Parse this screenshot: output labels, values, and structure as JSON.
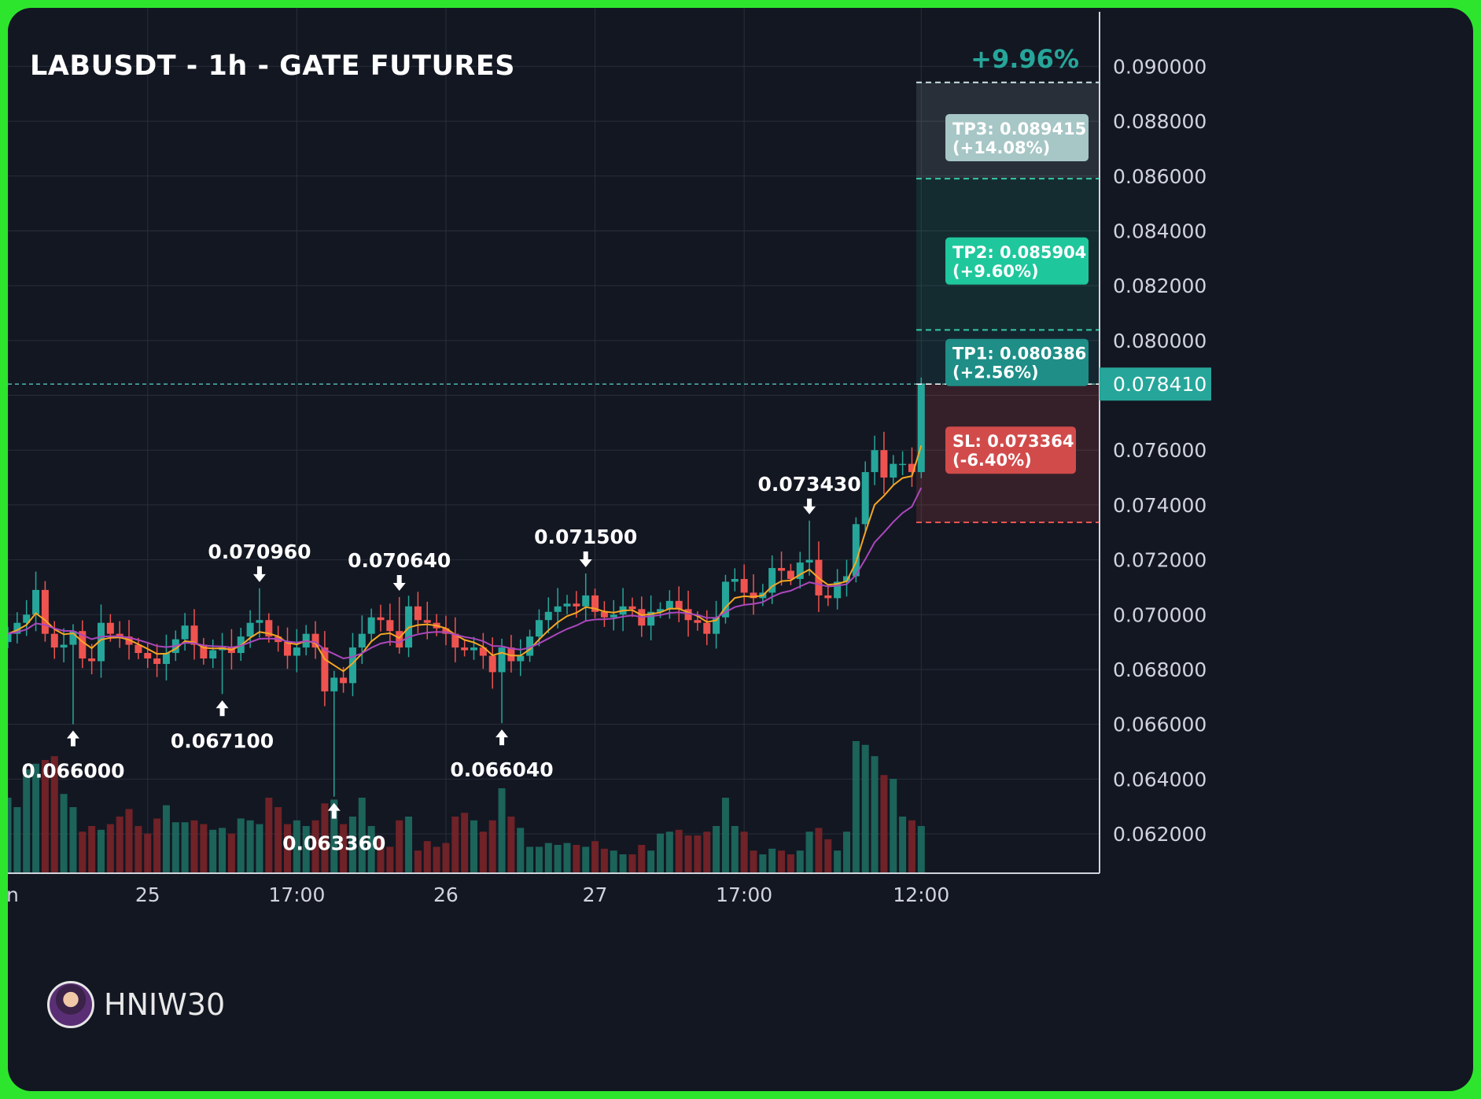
{
  "title": "LABUSDT - 1h - GATE FUTURES",
  "watermark": {
    "name": "HNIW30",
    "icon": "avatar-icon"
  },
  "colors": {
    "bull": "#26a69a",
    "bear": "#ef5350",
    "ema_fast": "#f5a623",
    "ema_slow": "#ab47bc",
    "grid": "#2a2e39",
    "axis_text": "#d1d4dc",
    "tp3": "#a7c6c6",
    "tp2": "#1fc79c",
    "tp1": "#1e8e87",
    "sl": "#d24b4b"
  },
  "chart_data": {
    "type": "candlestick",
    "symbol": "LABUSDT",
    "interval": "1h",
    "exchange": "GATE FUTURES",
    "y_ticks": [
      "0.090000",
      "0.088000",
      "0.086000",
      "0.084000",
      "0.082000",
      "0.080000",
      "0.076000",
      "0.074000",
      "0.072000",
      "0.070000",
      "0.068000",
      "0.066000",
      "0.064000",
      "0.062000"
    ],
    "ylim": [
      0.061,
      0.0915
    ],
    "x_ticks": [
      {
        "label": "n",
        "index": 0
      },
      {
        "label": "25",
        "index": 15
      },
      {
        "label": "17:00",
        "index": 31
      },
      {
        "label": "26",
        "index": 47
      },
      {
        "label": "27",
        "index": 63
      },
      {
        "label": "17:00",
        "index": 79
      },
      {
        "label": "12:00",
        "index": 98
      }
    ],
    "last_price": "0.078410",
    "last_price_value": 0.07841,
    "change_pct": "+9.96%",
    "targets": [
      {
        "name": "TP3",
        "label": "TP3: 0.089415",
        "pct": "(+14.08%)",
        "price": 0.089415
      },
      {
        "name": "TP2",
        "label": "TP2: 0.085904",
        "pct": "(+9.60%)",
        "price": 0.085904
      },
      {
        "name": "TP1",
        "label": "TP1: 0.080386",
        "pct": "(+2.56%)",
        "price": 0.080386
      }
    ],
    "stop_loss": {
      "label": "SL: 0.073364",
      "pct": "(-6.40%)",
      "price": 0.073364
    },
    "annotations": [
      {
        "text": "0.066000",
        "index": 7,
        "price": 0.066,
        "dir": "low"
      },
      {
        "text": "0.067100",
        "index": 23,
        "price": 0.0671,
        "dir": "low"
      },
      {
        "text": "0.070960",
        "index": 27,
        "price": 0.07096,
        "dir": "high"
      },
      {
        "text": "0.063360",
        "index": 35,
        "price": 0.06336,
        "dir": "low"
      },
      {
        "text": "0.070640",
        "index": 42,
        "price": 0.07064,
        "dir": "high"
      },
      {
        "text": "0.066040",
        "index": 53,
        "price": 0.06604,
        "dir": "low"
      },
      {
        "text": "0.071500",
        "index": 62,
        "price": 0.0715,
        "dir": "high"
      },
      {
        "text": "0.073430",
        "index": 86,
        "price": 0.07343,
        "dir": "high"
      }
    ],
    "close": [
      0.0693,
      0.0697,
      0.07,
      0.0709,
      0.0693,
      0.0688,
      0.0689,
      0.0694,
      0.0684,
      0.0683,
      0.0697,
      0.0693,
      0.0692,
      0.0689,
      0.0686,
      0.0684,
      0.0682,
      0.0686,
      0.0691,
      0.0696,
      0.0689,
      0.0684,
      0.0687,
      0.0688,
      0.0686,
      0.0692,
      0.0697,
      0.0698,
      0.0692,
      0.069,
      0.0685,
      0.0688,
      0.0693,
      0.0688,
      0.0672,
      0.0677,
      0.0675,
      0.0688,
      0.0693,
      0.0699,
      0.0698,
      0.0694,
      0.0688,
      0.0703,
      0.0698,
      0.0697,
      0.0695,
      0.0693,
      0.0688,
      0.0687,
      0.0688,
      0.0685,
      0.0679,
      0.0688,
      0.0683,
      0.0685,
      0.0692,
      0.0698,
      0.0701,
      0.0703,
      0.0704,
      0.0703,
      0.0707,
      0.0701,
      0.0699,
      0.07,
      0.0703,
      0.0702,
      0.0696,
      0.0701,
      0.0702,
      0.0705,
      0.0702,
      0.0698,
      0.0697,
      0.0693,
      0.0699,
      0.0712,
      0.0713,
      0.0708,
      0.0706,
      0.0708,
      0.0717,
      0.0716,
      0.0713,
      0.0719,
      0.072,
      0.0707,
      0.0706,
      0.0712,
      0.0714,
      0.0733,
      0.0752,
      0.076,
      0.075,
      0.0755,
      0.0755,
      0.0752,
      0.0784
    ],
    "volume": [
      0.4,
      0.35,
      0.55,
      0.58,
      0.6,
      0.62,
      0.42,
      0.35,
      0.22,
      0.25,
      0.23,
      0.26,
      0.3,
      0.34,
      0.25,
      0.21,
      0.29,
      0.36,
      0.27,
      0.27,
      0.28,
      0.26,
      0.23,
      0.24,
      0.21,
      0.29,
      0.28,
      0.26,
      0.4,
      0.35,
      0.26,
      0.28,
      0.25,
      0.28,
      0.37,
      0.39,
      0.26,
      0.3,
      0.4,
      0.25,
      0.19,
      0.14,
      0.28,
      0.3,
      0.12,
      0.17,
      0.14,
      0.16,
      0.3,
      0.32,
      0.28,
      0.22,
      0.28,
      0.45,
      0.3,
      0.24,
      0.14,
      0.14,
      0.16,
      0.15,
      0.16,
      0.15,
      0.14,
      0.17,
      0.13,
      0.12,
      0.1,
      0.1,
      0.15,
      0.12,
      0.21,
      0.22,
      0.23,
      0.2,
      0.2,
      0.22,
      0.25,
      0.4,
      0.25,
      0.22,
      0.12,
      0.1,
      0.13,
      0.12,
      0.1,
      0.12,
      0.22,
      0.24,
      0.18,
      0.12,
      0.22,
      0.7,
      0.68,
      0.62,
      0.52,
      0.5,
      0.3,
      0.28,
      0.25
    ]
  }
}
